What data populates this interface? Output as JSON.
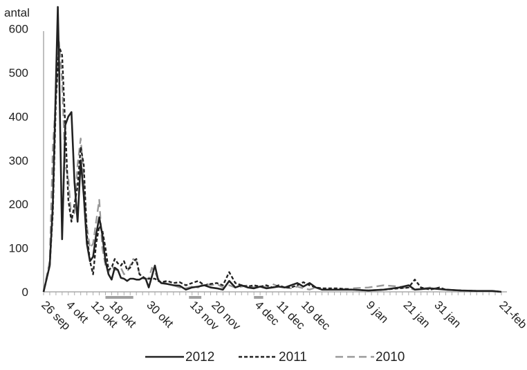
{
  "chart_data": {
    "type": "line",
    "ylabel": "antal",
    "xlabel": "",
    "title": "",
    "ylim": [
      0,
      650
    ],
    "y_ticks": [
      0,
      100,
      200,
      300,
      400,
      500,
      600
    ],
    "x_start": "26 sep",
    "x_end": "21-feb",
    "x_tick_labels": [
      {
        "label": "26 sep",
        "day": 0
      },
      {
        "label": "4 okt",
        "day": 8
      },
      {
        "label": "12 okt",
        "day": 16
      },
      {
        "label": "18 okt",
        "day": 22
      },
      {
        "label": "30 okt",
        "day": 34
      },
      {
        "label": "13 nov",
        "day": 48
      },
      {
        "label": "20 nov",
        "day": 55
      },
      {
        "label": "4 dec",
        "day": 69
      },
      {
        "label": "11 dec",
        "day": 76
      },
      {
        "label": "19 dec",
        "day": 84
      },
      {
        "label": "9 jan",
        "day": 105
      },
      {
        "label": "21 jan",
        "day": 117
      },
      {
        "label": "31 jan",
        "day": 127
      },
      {
        "label": "21-feb",
        "day": 148
      }
    ],
    "holiday_periods": [
      [
        20,
        29
      ],
      [
        47,
        51
      ],
      [
        68,
        71
      ]
    ],
    "legend_position": "bottom",
    "grid": false,
    "series": [
      {
        "name": "2012",
        "color": "#222222",
        "dash": "solid",
        "points": [
          [
            0,
            0
          ],
          [
            2,
            60
          ],
          [
            3,
            200
          ],
          [
            4,
            480
          ],
          [
            4.6,
            650
          ],
          [
            5,
            520
          ],
          [
            6,
            120
          ],
          [
            7,
            380
          ],
          [
            8,
            400
          ],
          [
            9,
            410
          ],
          [
            10,
            250
          ],
          [
            11,
            160
          ],
          [
            12,
            300
          ],
          [
            13,
            220
          ],
          [
            14,
            110
          ],
          [
            15,
            70
          ],
          [
            16,
            80
          ],
          [
            17,
            130
          ],
          [
            18,
            170
          ],
          [
            19,
            130
          ],
          [
            20,
            70
          ],
          [
            21,
            40
          ],
          [
            22,
            28
          ],
          [
            23,
            55
          ],
          [
            24,
            50
          ],
          [
            25,
            32
          ],
          [
            26,
            30
          ],
          [
            27,
            25
          ],
          [
            28,
            30
          ],
          [
            29,
            30
          ],
          [
            30,
            28
          ],
          [
            31,
            28
          ],
          [
            32,
            32
          ],
          [
            33,
            30
          ],
          [
            34,
            10
          ],
          [
            35,
            35
          ],
          [
            36,
            60
          ],
          [
            37,
            28
          ],
          [
            38,
            20
          ],
          [
            40,
            18
          ],
          [
            42,
            15
          ],
          [
            44,
            14
          ],
          [
            46,
            5
          ],
          [
            48,
            10
          ],
          [
            50,
            12
          ],
          [
            52,
            15
          ],
          [
            54,
            10
          ],
          [
            56,
            8
          ],
          [
            58,
            5
          ],
          [
            60,
            25
          ],
          [
            62,
            10
          ],
          [
            64,
            15
          ],
          [
            66,
            10
          ],
          [
            68,
            8
          ],
          [
            70,
            12
          ],
          [
            72,
            8
          ],
          [
            74,
            10
          ],
          [
            76,
            12
          ],
          [
            78,
            10
          ],
          [
            80,
            15
          ],
          [
            82,
            20
          ],
          [
            84,
            12
          ],
          [
            86,
            20
          ],
          [
            88,
            10
          ],
          [
            90,
            5
          ],
          [
            95,
            5
          ],
          [
            100,
            5
          ],
          [
            105,
            3
          ],
          [
            110,
            5
          ],
          [
            115,
            10
          ],
          [
            118,
            15
          ],
          [
            120,
            5
          ],
          [
            125,
            8
          ],
          [
            130,
            5
          ],
          [
            135,
            3
          ],
          [
            140,
            2
          ],
          [
            145,
            2
          ],
          [
            148,
            0
          ]
        ]
      },
      {
        "name": "2011",
        "color": "#222222",
        "dash": "short",
        "points": [
          [
            0,
            0
          ],
          [
            2,
            60
          ],
          [
            3,
            180
          ],
          [
            4,
            440
          ],
          [
            5,
            560
          ],
          [
            6,
            540
          ],
          [
            7,
            380
          ],
          [
            8,
            210
          ],
          [
            9,
            160
          ],
          [
            10,
            200
          ],
          [
            11,
            240
          ],
          [
            12,
            330
          ],
          [
            13,
            290
          ],
          [
            14,
            130
          ],
          [
            15,
            70
          ],
          [
            16,
            40
          ],
          [
            17,
            110
          ],
          [
            18,
            150
          ],
          [
            19,
            140
          ],
          [
            20,
            100
          ],
          [
            21,
            50
          ],
          [
            22,
            55
          ],
          [
            23,
            75
          ],
          [
            24,
            65
          ],
          [
            25,
            60
          ],
          [
            26,
            70
          ],
          [
            27,
            50
          ],
          [
            28,
            55
          ],
          [
            29,
            70
          ],
          [
            30,
            75
          ],
          [
            31,
            40
          ],
          [
            32,
            35
          ],
          [
            33,
            30
          ],
          [
            34,
            30
          ],
          [
            35,
            30
          ],
          [
            36,
            30
          ],
          [
            37,
            25
          ],
          [
            38,
            22
          ],
          [
            40,
            25
          ],
          [
            42,
            20
          ],
          [
            44,
            22
          ],
          [
            46,
            15
          ],
          [
            48,
            20
          ],
          [
            50,
            25
          ],
          [
            52,
            15
          ],
          [
            54,
            18
          ],
          [
            56,
            20
          ],
          [
            58,
            15
          ],
          [
            60,
            45
          ],
          [
            62,
            20
          ],
          [
            64,
            15
          ],
          [
            66,
            12
          ],
          [
            68,
            15
          ],
          [
            70,
            12
          ],
          [
            72,
            15
          ],
          [
            74,
            10
          ],
          [
            76,
            15
          ],
          [
            78,
            10
          ],
          [
            80,
            10
          ],
          [
            82,
            15
          ],
          [
            84,
            22
          ],
          [
            86,
            15
          ],
          [
            88,
            10
          ],
          [
            90,
            8
          ],
          [
            95,
            8
          ],
          [
            100,
            5
          ],
          [
            105,
            3
          ],
          [
            110,
            5
          ],
          [
            115,
            8
          ],
          [
            118,
            10
          ],
          [
            120,
            28
          ],
          [
            122,
            10
          ],
          [
            125,
            5
          ],
          [
            128,
            10
          ],
          [
            130,
            5
          ],
          [
            135,
            3
          ],
          [
            140,
            2
          ],
          [
            145,
            2
          ],
          [
            148,
            0
          ]
        ]
      },
      {
        "name": "2010",
        "color": "#999999",
        "dash": "long",
        "points": [
          [
            0,
            0
          ],
          [
            2,
            70
          ],
          [
            3,
            330
          ],
          [
            4,
            440
          ],
          [
            5,
            570
          ],
          [
            6,
            480
          ],
          [
            7,
            290
          ],
          [
            8,
            260
          ],
          [
            9,
            165
          ],
          [
            10,
            180
          ],
          [
            11,
            290
          ],
          [
            12,
            350
          ],
          [
            13,
            260
          ],
          [
            14,
            150
          ],
          [
            15,
            100
          ],
          [
            16,
            110
          ],
          [
            17,
            160
          ],
          [
            18,
            210
          ],
          [
            19,
            100
          ],
          [
            20,
            60
          ],
          [
            21,
            45
          ],
          [
            22,
            60
          ],
          [
            23,
            50
          ],
          [
            24,
            50
          ],
          [
            25,
            55
          ],
          [
            26,
            40
          ],
          [
            27,
            45
          ],
          [
            28,
            60
          ],
          [
            29,
            75
          ],
          [
            30,
            70
          ],
          [
            31,
            40
          ],
          [
            32,
            35
          ],
          [
            33,
            30
          ],
          [
            34,
            30
          ],
          [
            35,
            55
          ],
          [
            36,
            45
          ],
          [
            37,
            30
          ],
          [
            38,
            25
          ],
          [
            40,
            18
          ],
          [
            42,
            15
          ],
          [
            44,
            10
          ],
          [
            46,
            8
          ],
          [
            48,
            12
          ],
          [
            50,
            10
          ],
          [
            52,
            20
          ],
          [
            54,
            15
          ],
          [
            56,
            18
          ],
          [
            58,
            10
          ],
          [
            60,
            15
          ],
          [
            62,
            10
          ],
          [
            64,
            12
          ],
          [
            66,
            15
          ],
          [
            68,
            10
          ],
          [
            70,
            15
          ],
          [
            72,
            10
          ],
          [
            74,
            18
          ],
          [
            76,
            12
          ],
          [
            78,
            10
          ],
          [
            80,
            8
          ],
          [
            82,
            12
          ],
          [
            84,
            8
          ],
          [
            86,
            5
          ],
          [
            88,
            10
          ],
          [
            90,
            5
          ],
          [
            95,
            5
          ],
          [
            100,
            8
          ],
          [
            105,
            10
          ],
          [
            110,
            15
          ],
          [
            115,
            12
          ],
          [
            118,
            8
          ],
          [
            120,
            5
          ],
          [
            125,
            10
          ],
          [
            130,
            5
          ],
          [
            135,
            3
          ],
          [
            140,
            2
          ],
          [
            145,
            2
          ],
          [
            148,
            0
          ]
        ]
      }
    ]
  }
}
